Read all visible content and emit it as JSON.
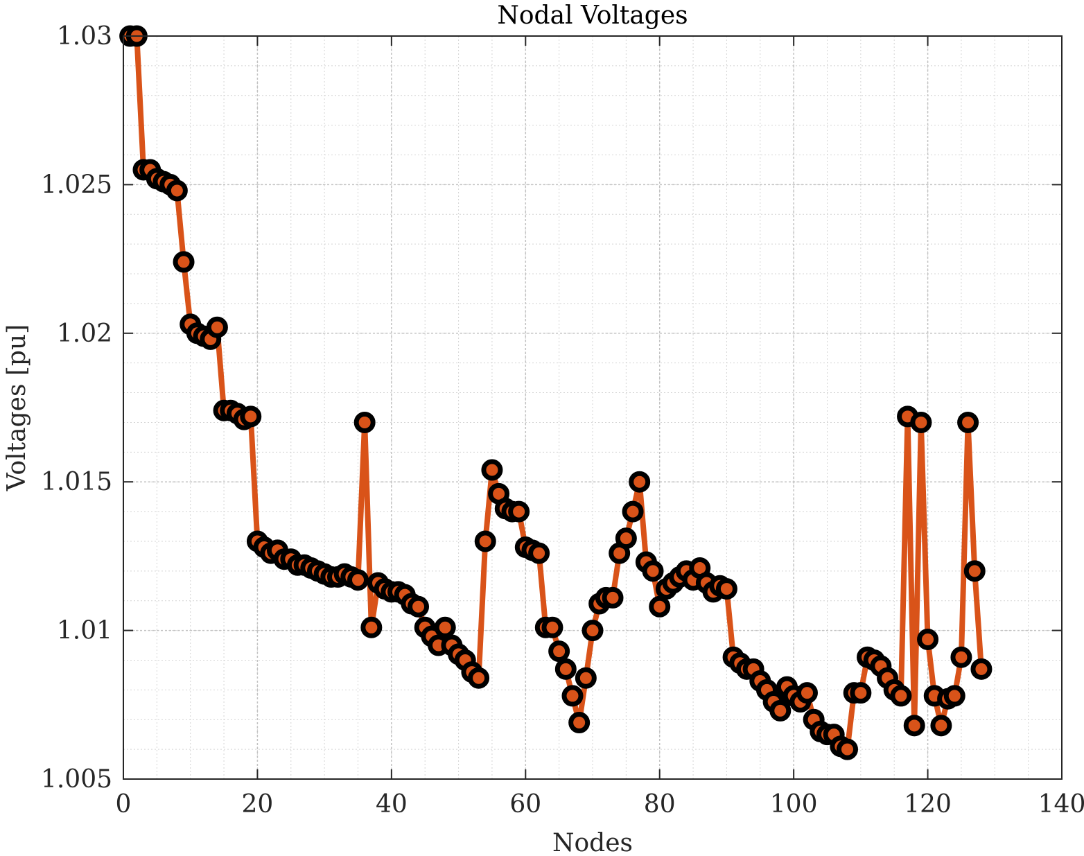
{
  "chart_data": {
    "type": "line",
    "title": "Nodal Voltages",
    "xlabel": "Nodes",
    "ylabel": "Voltages [pu]",
    "xlim": [
      0,
      140
    ],
    "ylim": [
      1.005,
      1.03
    ],
    "xticks": [
      0,
      20,
      40,
      60,
      80,
      100,
      120,
      140
    ],
    "xtick_labels": [
      "0",
      "20",
      "40",
      "60",
      "80",
      "100",
      "120",
      "140"
    ],
    "yticks": [
      1.005,
      1.01,
      1.015,
      1.02,
      1.025,
      1.03
    ],
    "ytick_labels": [
      "1.005",
      "1.01",
      "1.015",
      "1.02",
      "1.025",
      "1.03"
    ],
    "grid": true,
    "minor_grid": true,
    "legend": "none",
    "colors": {
      "line": "#D95319",
      "marker_edge": "#000000",
      "marker_face": "#D95319"
    },
    "series": [
      {
        "x": [
          1,
          2,
          3,
          4,
          5,
          6,
          7,
          8,
          9,
          10,
          11,
          12,
          13,
          14,
          15,
          16,
          17,
          18,
          19,
          20,
          21,
          22,
          23,
          24,
          25,
          26,
          27,
          28,
          29,
          30,
          31,
          32,
          33,
          34,
          35,
          36,
          37,
          38,
          39,
          40,
          41,
          42,
          43,
          44,
          45,
          46,
          47,
          48,
          49,
          50,
          51,
          52,
          53,
          54,
          55,
          56,
          57,
          58,
          59,
          60,
          61,
          62,
          63,
          64,
          65,
          66,
          67,
          68,
          69,
          70,
          71,
          72,
          73,
          74,
          75,
          76,
          77,
          78,
          79,
          80,
          81,
          82,
          83,
          84,
          85,
          86,
          87,
          88,
          89,
          90,
          91,
          92,
          93,
          94,
          95,
          96,
          97,
          98,
          99,
          100,
          101,
          102,
          103,
          104,
          105,
          106,
          107,
          108,
          109,
          110,
          111,
          112,
          113,
          114,
          115,
          116,
          117,
          118,
          119,
          120,
          121,
          122,
          123,
          124,
          125,
          126,
          127,
          128
        ],
        "y": [
          1.03,
          1.03,
          1.0255,
          1.0255,
          1.0252,
          1.0251,
          1.025,
          1.0248,
          1.0224,
          1.0203,
          1.02,
          1.0199,
          1.0198,
          1.0202,
          1.0174,
          1.0174,
          1.0173,
          1.0171,
          1.0172,
          1.013,
          1.0128,
          1.0126,
          1.0127,
          1.0124,
          1.0124,
          1.0122,
          1.0122,
          1.0121,
          1.012,
          1.0119,
          1.0118,
          1.0118,
          1.0119,
          1.0118,
          1.0117,
          1.017,
          1.0101,
          1.0116,
          1.0114,
          1.0113,
          1.0113,
          1.0112,
          1.0109,
          1.0108,
          1.0101,
          1.0098,
          1.0095,
          1.0101,
          1.0095,
          1.0092,
          1.009,
          1.0086,
          1.0084,
          1.013,
          1.0154,
          1.0146,
          1.0141,
          1.014,
          1.014,
          1.0128,
          1.0127,
          1.0126,
          1.0101,
          1.0101,
          1.0093,
          1.0087,
          1.0078,
          1.0069,
          1.0084,
          1.01,
          1.0109,
          1.0111,
          1.0111,
          1.0126,
          1.0131,
          1.014,
          1.015,
          1.0123,
          1.012,
          1.0108,
          1.0114,
          1.0116,
          1.0118,
          1.012,
          1.0117,
          1.0121,
          1.0116,
          1.0113,
          1.0115,
          1.0114,
          1.0091,
          1.0089,
          1.0087,
          1.0087,
          1.0083,
          1.008,
          1.0076,
          1.0073,
          1.0081,
          1.0078,
          1.0076,
          1.0079,
          1.007,
          1.0066,
          1.0065,
          1.0065,
          1.0061,
          1.006,
          1.0079,
          1.0079,
          1.0091,
          1.009,
          1.0088,
          1.0084,
          1.008,
          1.0078,
          1.0172,
          1.0068,
          1.017,
          1.0097,
          1.0078,
          1.0068,
          1.0077,
          1.0078,
          1.0091,
          1.017,
          1.012,
          1.0087
        ]
      }
    ]
  }
}
